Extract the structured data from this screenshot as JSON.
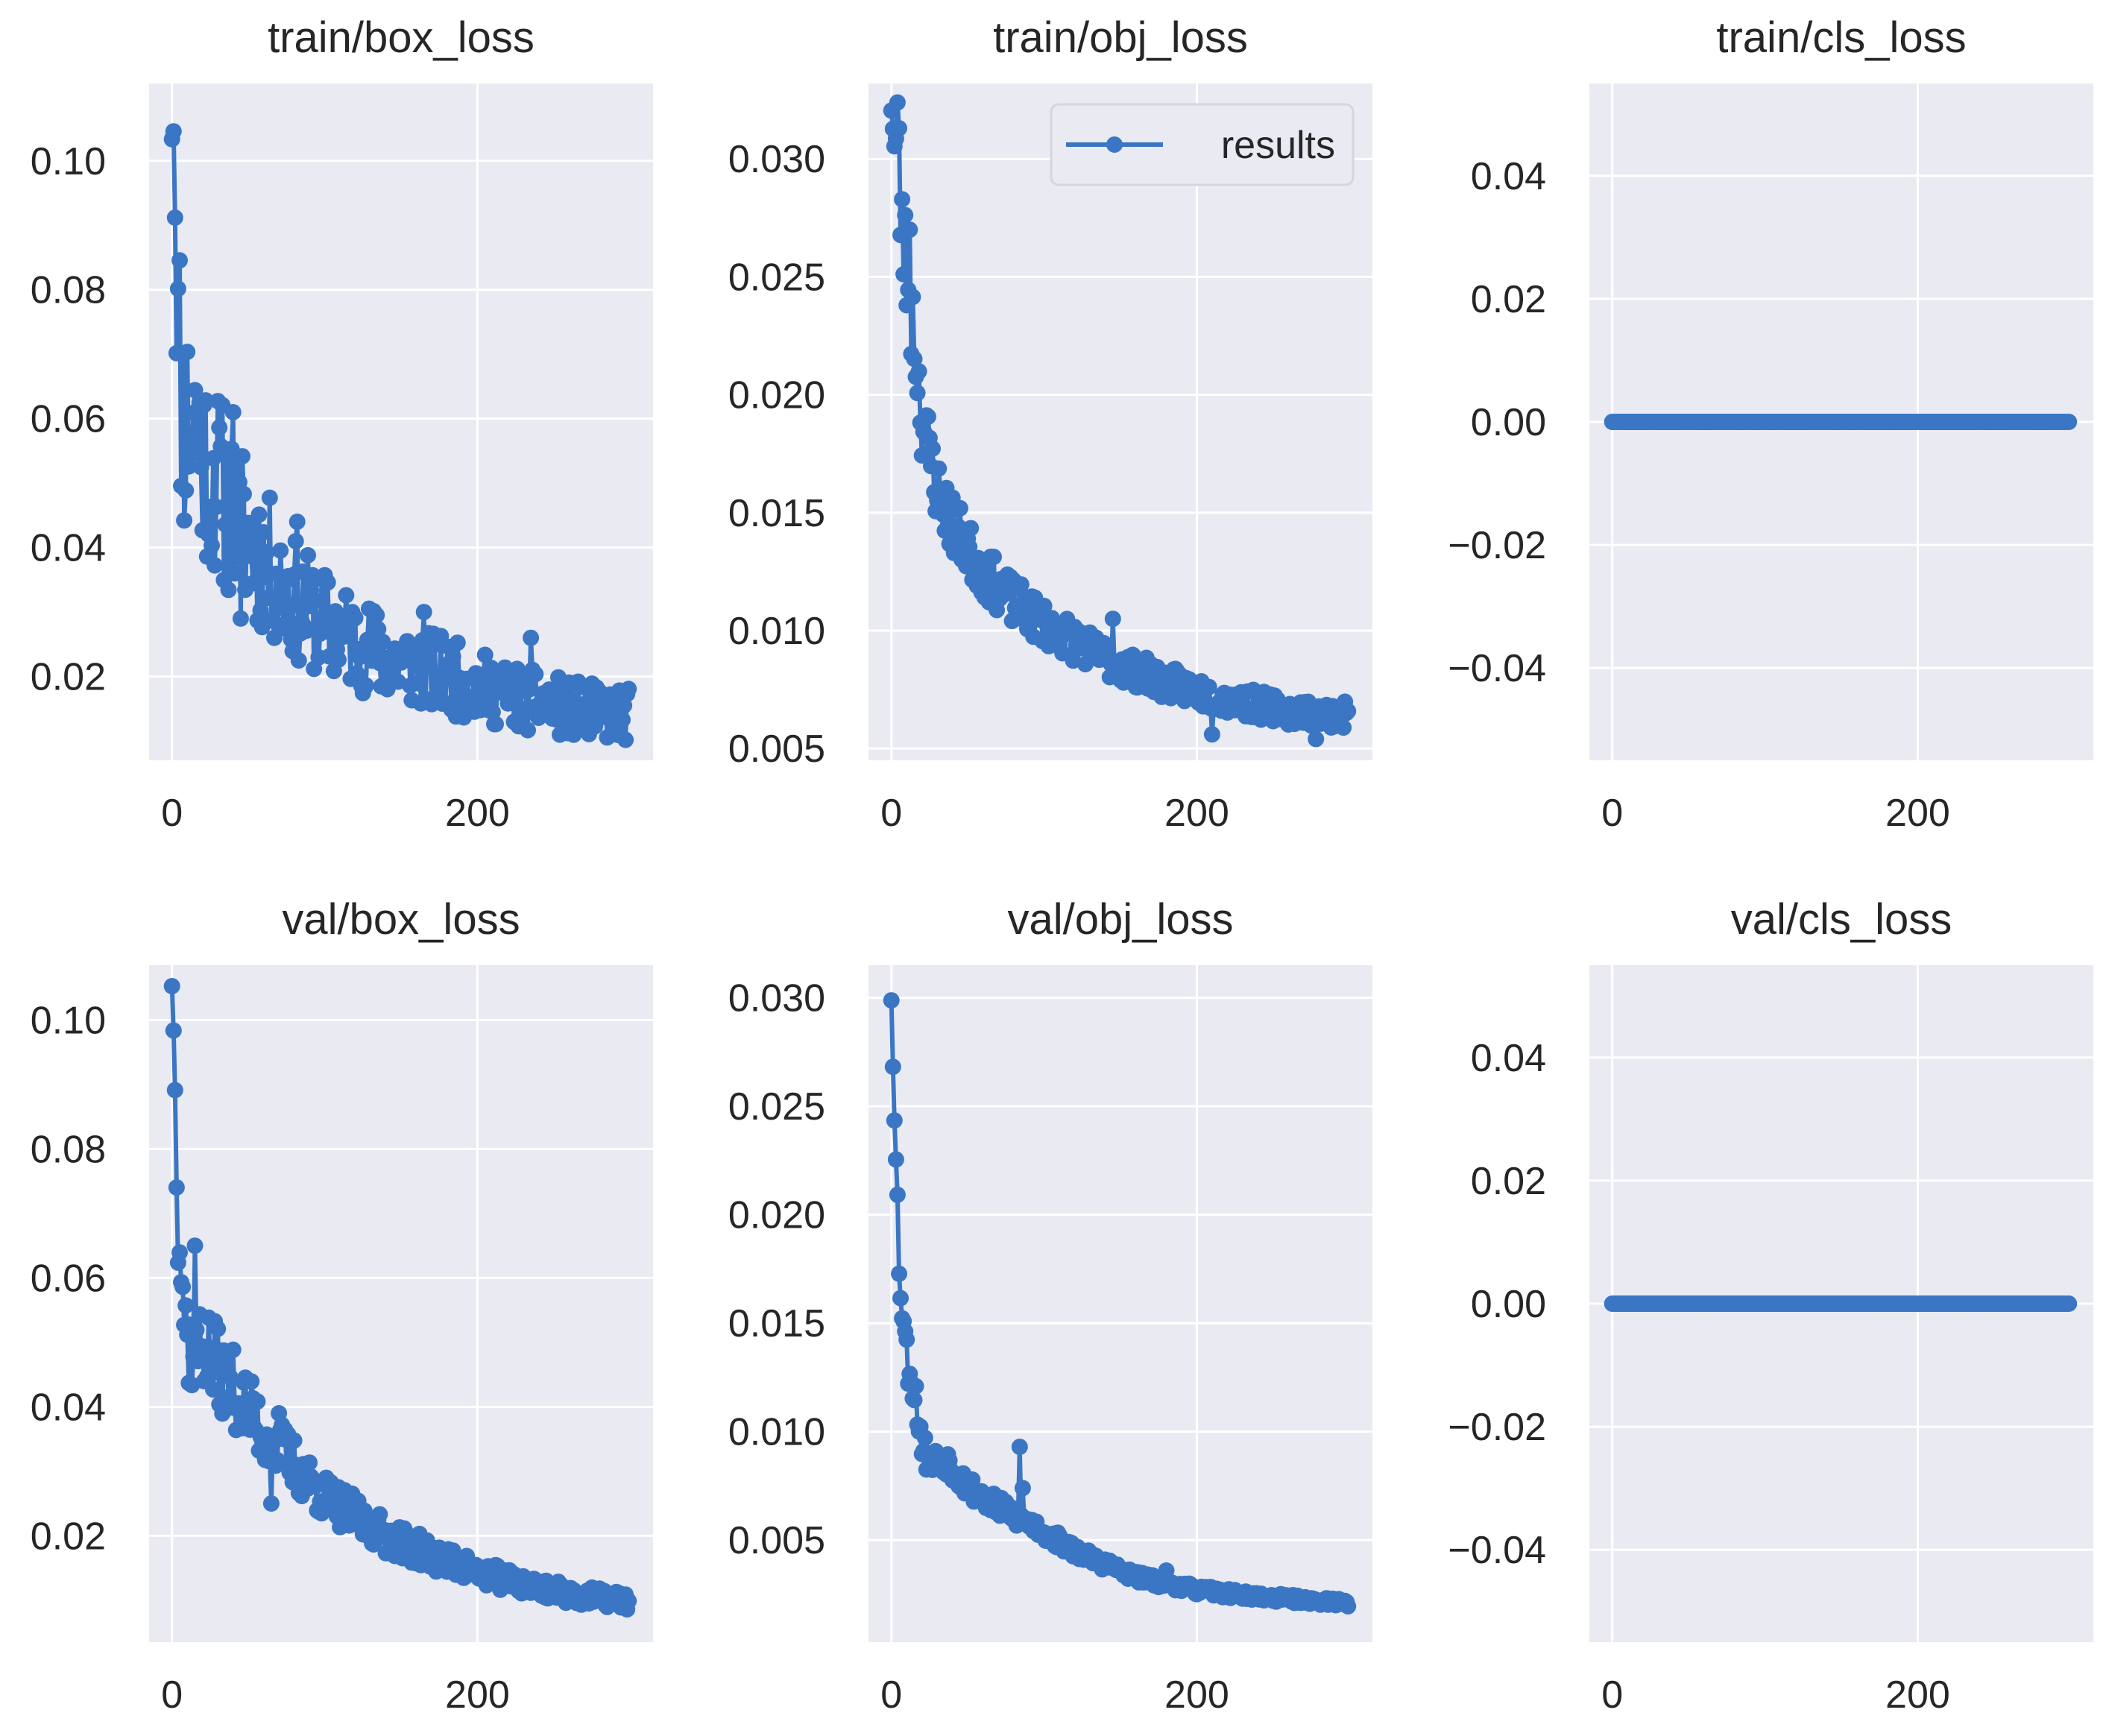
{
  "figure_type": "training-loss-grid",
  "colors": {
    "series": "#3a76c4",
    "panel_bg": "#e9eaf2",
    "grid": "#ffffff",
    "text": "#262626"
  },
  "legend": {
    "label": "results",
    "panel": 1,
    "loc": "upper right"
  },
  "chart_data": [
    {
      "type": "line",
      "title": "train/box_loss",
      "xlim": [
        -15,
        315
      ],
      "ylim": [
        0.007,
        0.112
      ],
      "xticks": [
        0,
        200
      ],
      "xtick_labels": [
        "0",
        "200"
      ],
      "yticks": [
        0.02,
        0.04,
        0.06,
        0.08,
        0.1
      ],
      "ytick_labels": [
        "0.02",
        "0.04",
        "0.06",
        "0.08",
        "0.10"
      ],
      "series": [
        {
          "name": "results",
          "model": "decay",
          "n": 300,
          "anchors": [
            [
              0,
              0.105
            ],
            [
              1,
              0.106
            ],
            [
              2,
              0.092
            ],
            [
              3,
              0.072
            ],
            [
              5,
              0.07
            ],
            [
              8,
              0.058
            ],
            [
              12,
              0.062
            ],
            [
              20,
              0.055
            ],
            [
              30,
              0.05
            ],
            [
              40,
              0.045
            ],
            [
              60,
              0.038
            ],
            [
              80,
              0.032
            ],
            [
              100,
              0.028
            ],
            [
              140,
              0.023
            ],
            [
              180,
              0.02
            ],
            [
              220,
              0.017
            ],
            [
              260,
              0.015
            ],
            [
              299,
              0.014
            ]
          ],
          "noise": 0.3,
          "seed": 11,
          "outliers": [
            [
              40,
              0.061
            ],
            [
              45,
              0.029
            ],
            [
              24,
              0.042
            ],
            [
              82,
              0.044
            ],
            [
              165,
              0.03
            ],
            [
              235,
              0.026
            ]
          ]
        }
      ]
    },
    {
      "type": "line",
      "title": "train/obj_loss",
      "xlim": [
        -15,
        315
      ],
      "ylim": [
        0.0045,
        0.0332
      ],
      "xticks": [
        0,
        200
      ],
      "xtick_labels": [
        "0",
        "200"
      ],
      "yticks": [
        0.005,
        0.01,
        0.015,
        0.02,
        0.025,
        0.03
      ],
      "ytick_labels": [
        "0.005",
        "0.010",
        "0.015",
        "0.020",
        "0.025",
        "0.030"
      ],
      "series": [
        {
          "name": "results",
          "model": "decay",
          "n": 300,
          "anchors": [
            [
              0,
              0.0322
            ],
            [
              2,
              0.0305
            ],
            [
              4,
              0.0312
            ],
            [
              6,
              0.028
            ],
            [
              10,
              0.025
            ],
            [
              15,
              0.0225
            ],
            [
              20,
              0.019
            ],
            [
              30,
              0.016
            ],
            [
              40,
              0.0145
            ],
            [
              60,
              0.0125
            ],
            [
              80,
              0.0112
            ],
            [
              100,
              0.0103
            ],
            [
              140,
              0.0088
            ],
            [
              180,
              0.0078
            ],
            [
              220,
              0.0071
            ],
            [
              260,
              0.0066
            ],
            [
              299,
              0.0064
            ]
          ],
          "noise": 0.09,
          "seed": 23,
          "outliers": [
            [
              12,
              0.027
            ],
            [
              145,
              0.0105
            ],
            [
              210,
              0.0056
            ],
            [
              278,
              0.0054
            ]
          ]
        }
      ]
    },
    {
      "type": "line",
      "title": "train/cls_loss",
      "xlim": [
        -15,
        315
      ],
      "ylim": [
        -0.055,
        0.055
      ],
      "xticks": [
        0,
        200
      ],
      "xtick_labels": [
        "0",
        "200"
      ],
      "yticks": [
        -0.04,
        -0.02,
        0.0,
        0.02,
        0.04
      ],
      "ytick_labels": [
        "−0.04",
        "−0.02",
        "0.00",
        "0.02",
        "0.04"
      ],
      "series": [
        {
          "name": "results",
          "model": "constant",
          "n": 300,
          "value": 0.0
        }
      ]
    },
    {
      "type": "line",
      "title": "val/box_loss",
      "xlim": [
        -15,
        315
      ],
      "ylim": [
        0.0035,
        0.1085
      ],
      "xticks": [
        0,
        200
      ],
      "xtick_labels": [
        "0",
        "200"
      ],
      "yticks": [
        0.02,
        0.04,
        0.06,
        0.08,
        0.1
      ],
      "ytick_labels": [
        "0.02",
        "0.04",
        "0.06",
        "0.08",
        "0.10"
      ],
      "series": [
        {
          "name": "results",
          "model": "decay",
          "n": 300,
          "anchors": [
            [
              0,
              0.106
            ],
            [
              2,
              0.09
            ],
            [
              3,
              0.075
            ],
            [
              5,
              0.068
            ],
            [
              7,
              0.058
            ],
            [
              10,
              0.05
            ],
            [
              15,
              0.048
            ],
            [
              20,
              0.05
            ],
            [
              30,
              0.046
            ],
            [
              40,
              0.043
            ],
            [
              60,
              0.036
            ],
            [
              80,
              0.031
            ],
            [
              100,
              0.026
            ],
            [
              140,
              0.02
            ],
            [
              180,
              0.016
            ],
            [
              220,
              0.013
            ],
            [
              260,
              0.011
            ],
            [
              299,
              0.0098
            ]
          ],
          "noise": 0.14,
          "seed": 37,
          "outliers": [
            [
              15,
              0.065
            ],
            [
              65,
              0.025
            ],
            [
              70,
              0.039
            ]
          ]
        }
      ]
    },
    {
      "type": "line",
      "title": "val/obj_loss",
      "xlim": [
        -15,
        315
      ],
      "ylim": [
        0.0003,
        0.0315
      ],
      "xticks": [
        0,
        200
      ],
      "xtick_labels": [
        "0",
        "200"
      ],
      "yticks": [
        0.005,
        0.01,
        0.015,
        0.02,
        0.025,
        0.03
      ],
      "ytick_labels": [
        "0.005",
        "0.010",
        "0.015",
        "0.020",
        "0.025",
        "0.030"
      ],
      "series": [
        {
          "name": "results",
          "model": "decay",
          "n": 300,
          "anchors": [
            [
              0,
              0.03
            ],
            [
              1,
              0.027
            ],
            [
              2,
              0.0245
            ],
            [
              3,
              0.0225
            ],
            [
              5,
              0.018
            ],
            [
              7,
              0.016
            ],
            [
              10,
              0.0135
            ],
            [
              15,
              0.012
            ],
            [
              20,
              0.0095
            ],
            [
              25,
              0.0085
            ],
            [
              35,
              0.0088
            ],
            [
              50,
              0.0075
            ],
            [
              70,
              0.0065
            ],
            [
              90,
              0.0058
            ],
            [
              120,
              0.0045
            ],
            [
              160,
              0.0033
            ],
            [
              200,
              0.0027
            ],
            [
              240,
              0.0024
            ],
            [
              299,
              0.0021
            ]
          ],
          "noise": 0.08,
          "seed": 53,
          "outliers": [
            [
              84,
              0.0093
            ],
            [
              86,
              0.0074
            ],
            [
              180,
              0.0036
            ]
          ]
        }
      ]
    },
    {
      "type": "line",
      "title": "val/cls_loss",
      "xlim": [
        -15,
        315
      ],
      "ylim": [
        -0.055,
        0.055
      ],
      "xticks": [
        0,
        200
      ],
      "xtick_labels": [
        "0",
        "200"
      ],
      "yticks": [
        -0.04,
        -0.02,
        0.0,
        0.02,
        0.04
      ],
      "ytick_labels": [
        "−0.04",
        "−0.02",
        "0.00",
        "0.02",
        "0.04"
      ],
      "series": [
        {
          "name": "results",
          "model": "constant",
          "n": 300,
          "value": 0.0
        }
      ]
    }
  ]
}
